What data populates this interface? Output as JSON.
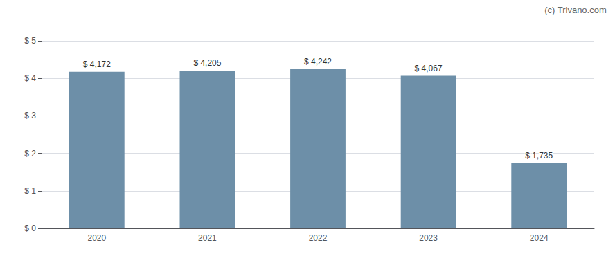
{
  "chart_data": {
    "type": "bar",
    "categories": [
      "2020",
      "2021",
      "2022",
      "2023",
      "2024"
    ],
    "values": [
      4.172,
      4.205,
      4.242,
      4.067,
      1.735
    ],
    "value_labels": [
      "$ 4,172",
      "$ 4,205",
      "$ 4,242",
      "$ 4,067",
      "$ 1,735"
    ],
    "data_labels": true,
    "color": "#6d8fa8",
    "ylim": [
      0,
      5.35
    ],
    "yticks": [
      {
        "value": 0,
        "label": "$ 0"
      },
      {
        "value": 1,
        "label": "$ 1"
      },
      {
        "value": 2,
        "label": "$ 2"
      },
      {
        "value": 3,
        "label": "$ 3"
      },
      {
        "value": 4,
        "label": "$ 4"
      },
      {
        "value": 5,
        "label": "$ 5"
      }
    ],
    "grid": true,
    "annotations": [
      "(c) Trivano.com"
    ]
  }
}
